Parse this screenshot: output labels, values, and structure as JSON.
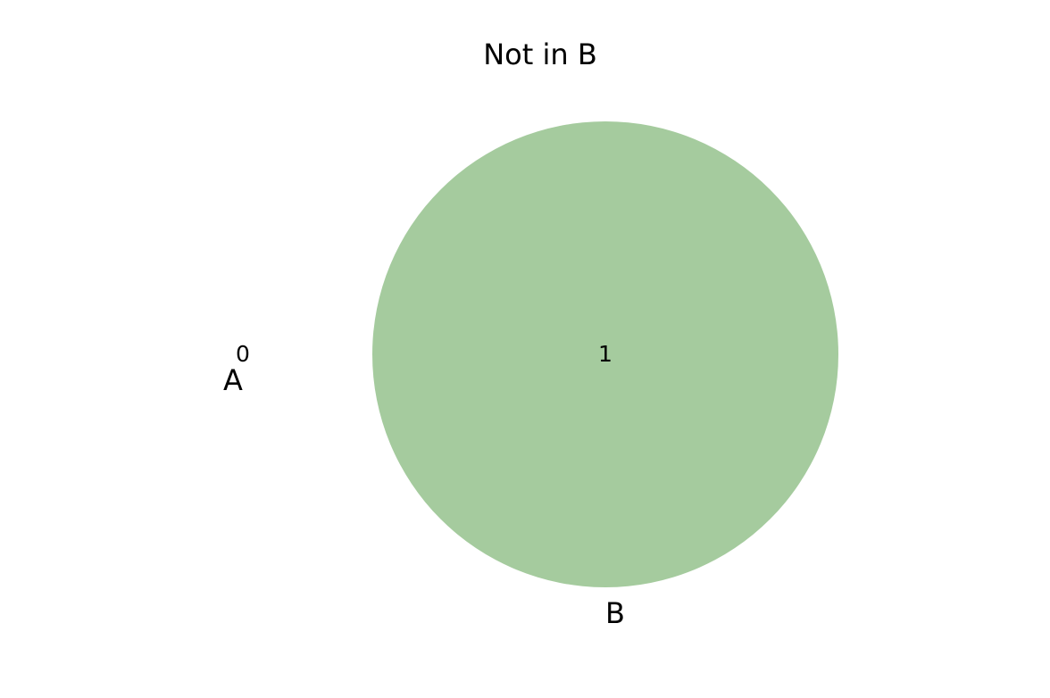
{
  "title": "Not in B",
  "sets": [
    {
      "label": "A",
      "color": "#ffffff"
    },
    {
      "label": "B",
      "color": "#a5cb9e"
    }
  ],
  "regions": {
    "a_only": "0",
    "b_only": "1"
  }
}
